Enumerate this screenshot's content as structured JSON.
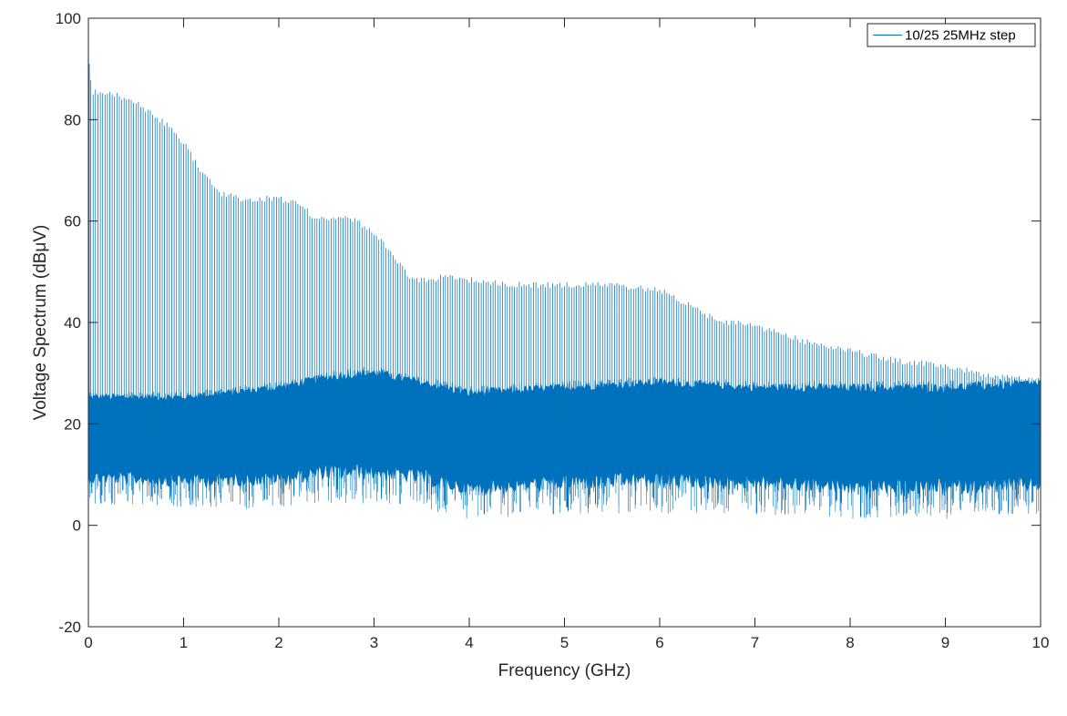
{
  "chart_data": {
    "type": "line",
    "title": "",
    "xlabel": "Frequency (GHz)",
    "ylabel": "Voltage Spectrum (dBμV)",
    "xlim": [
      0,
      10
    ],
    "ylim": [
      -20,
      100
    ],
    "xticks": [
      "0",
      "1",
      "2",
      "3",
      "4",
      "5",
      "6",
      "7",
      "8",
      "9",
      "10"
    ],
    "yticks": [
      "-20",
      "0",
      "20",
      "40",
      "60",
      "80",
      "100"
    ],
    "grid": false,
    "legend": {
      "position": "top-right",
      "entries": [
        "10/25 25MHz step"
      ]
    },
    "series": [
      {
        "name": "10/25 25MHz step",
        "color": "#0072BD",
        "step_GHz": 0.025,
        "peak_envelope": {
          "x": [
            0.0,
            0.05,
            0.2,
            0.5,
            0.8,
            1.0,
            1.2,
            1.4,
            1.6,
            1.8,
            2.0,
            2.2,
            2.4,
            2.6,
            2.8,
            3.0,
            3.2,
            3.4,
            3.6,
            3.8,
            4.0,
            4.5,
            5.0,
            5.5,
            6.0,
            6.3,
            6.6,
            7.0,
            7.5,
            8.0,
            8.5,
            9.0,
            9.5,
            10.0
          ],
          "y": [
            91,
            86,
            86,
            84,
            80,
            76,
            70,
            66,
            65,
            65,
            65,
            64,
            61,
            61,
            61,
            58,
            54,
            49,
            49,
            50,
            49,
            48,
            48,
            48,
            47,
            44,
            41,
            40,
            37,
            35,
            33,
            32,
            30,
            29
          ]
        },
        "noise_floor": {
          "x": [
            0,
            1,
            2,
            2.5,
            3,
            3.5,
            4,
            5,
            6,
            7,
            8,
            9,
            10
          ],
          "center": [
            18,
            18,
            19,
            21,
            21,
            20,
            17,
            19,
            20,
            19,
            18,
            18,
            18
          ],
          "upper": [
            26,
            26,
            28,
            30,
            31,
            29,
            27,
            28,
            29,
            28,
            28,
            28,
            29
          ],
          "lower": [
            5,
            4,
            4,
            5,
            5,
            4,
            2,
            3,
            3,
            3,
            2,
            2,
            3
          ]
        }
      }
    ]
  }
}
